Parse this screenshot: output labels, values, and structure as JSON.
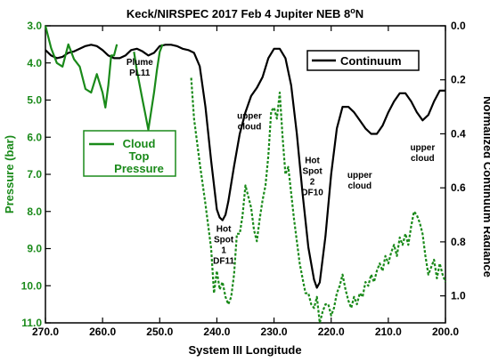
{
  "chart_data": {
    "type": "line",
    "title": "Keck/NIRSPEC 2017 Feb 4 Jupiter NEB 8",
    "title_superscript": "o",
    "title_suffix": "N",
    "xlabel": "System III Longitude",
    "ylabel_left": "Pressure (bar)",
    "ylabel_right": "Normalized Continuum Radiance",
    "xlim": [
      270,
      200
    ],
    "ylim_left": [
      3.0,
      11.0
    ],
    "ylim_right": [
      0.0,
      1.1
    ],
    "x_ticks": [
      "270.0",
      "260.0",
      "250.0",
      "240.0",
      "230.0",
      "220.0",
      "210.0",
      "200.0"
    ],
    "y_left_ticks": [
      "3.0",
      "4.0",
      "5.0",
      "6.0",
      "7.0",
      "8.0",
      "9.0",
      "10.0",
      "11.0"
    ],
    "y_right_ticks": [
      "0.0",
      "0.2",
      "0.4",
      "0.6",
      "0.8",
      "1.0"
    ],
    "colors": {
      "continuum": "#000000",
      "cloud": "#1a8a1a"
    },
    "legend_continuum": {
      "label": "Continuum",
      "placement": "top-right"
    },
    "legend_cloud": {
      "lines": [
        "Cloud",
        "Top",
        "Pressure"
      ],
      "placement": "left"
    },
    "series": [
      {
        "name": "Continuum",
        "axis": "right",
        "style": "solid",
        "points": [
          [
            270,
            0.09
          ],
          [
            269,
            0.11
          ],
          [
            268,
            0.12
          ],
          [
            267,
            0.115
          ],
          [
            266,
            0.1
          ],
          [
            265,
            0.095
          ],
          [
            264,
            0.085
          ],
          [
            263,
            0.075
          ],
          [
            262,
            0.07
          ],
          [
            261,
            0.075
          ],
          [
            260,
            0.09
          ],
          [
            259,
            0.11
          ],
          [
            258,
            0.12
          ],
          [
            257,
            0.12
          ],
          [
            256,
            0.11
          ],
          [
            255,
            0.09
          ],
          [
            254,
            0.085
          ],
          [
            253,
            0.095
          ],
          [
            252,
            0.11
          ],
          [
            251,
            0.1
          ],
          [
            250,
            0.075
          ],
          [
            249,
            0.07
          ],
          [
            248,
            0.07
          ],
          [
            247,
            0.075
          ],
          [
            246,
            0.085
          ],
          [
            245,
            0.09
          ],
          [
            244,
            0.1
          ],
          [
            243,
            0.15
          ],
          [
            242,
            0.3
          ],
          [
            241,
            0.5
          ],
          [
            240,
            0.68
          ],
          [
            239.5,
            0.71
          ],
          [
            239,
            0.72
          ],
          [
            238.5,
            0.7
          ],
          [
            238,
            0.65
          ],
          [
            237,
            0.52
          ],
          [
            236,
            0.4
          ],
          [
            235,
            0.32
          ],
          [
            234,
            0.26
          ],
          [
            233,
            0.23
          ],
          [
            232,
            0.19
          ],
          [
            231,
            0.12
          ],
          [
            230,
            0.085
          ],
          [
            229,
            0.085
          ],
          [
            228,
            0.12
          ],
          [
            227,
            0.22
          ],
          [
            226,
            0.4
          ],
          [
            225,
            0.62
          ],
          [
            224,
            0.82
          ],
          [
            223,
            0.94
          ],
          [
            222.5,
            0.97
          ],
          [
            222,
            0.95
          ],
          [
            221,
            0.78
          ],
          [
            220,
            0.55
          ],
          [
            219,
            0.38
          ],
          [
            218,
            0.3
          ],
          [
            217,
            0.3
          ],
          [
            216,
            0.32
          ],
          [
            215,
            0.35
          ],
          [
            214,
            0.38
          ],
          [
            213,
            0.4
          ],
          [
            212,
            0.4
          ],
          [
            211,
            0.37
          ],
          [
            210,
            0.32
          ],
          [
            209,
            0.28
          ],
          [
            208,
            0.25
          ],
          [
            207,
            0.25
          ],
          [
            206,
            0.28
          ],
          [
            205,
            0.32
          ],
          [
            204,
            0.35
          ],
          [
            203,
            0.33
          ],
          [
            202,
            0.28
          ],
          [
            201,
            0.24
          ],
          [
            200,
            0.24
          ]
        ]
      },
      {
        "name": "Cloud Top Pressure",
        "axis": "left",
        "style": "solid",
        "points": [
          [
            270,
            3.0
          ],
          [
            269,
            3.6
          ],
          [
            268,
            4.0
          ],
          [
            267,
            4.1
          ],
          [
            266,
            3.5
          ],
          [
            265,
            3.9
          ],
          [
            264,
            4.1
          ],
          [
            263,
            4.7
          ],
          [
            262,
            4.8
          ],
          [
            261,
            4.3
          ],
          [
            260,
            4.8
          ],
          [
            259.5,
            5.2
          ],
          [
            259,
            4.6
          ],
          [
            258.5,
            3.8
          ],
          [
            258,
            3.8
          ],
          [
            257.5,
            3.5
          ]
        ]
      },
      {
        "name": "Cloud Top Pressure (PL11)",
        "axis": "left",
        "style": "solid",
        "points": [
          [
            254.5,
            3.7
          ],
          [
            254,
            4.2
          ],
          [
            253,
            5.0
          ],
          [
            252.5,
            5.4
          ],
          [
            252,
            5.8
          ],
          [
            251.5,
            5.3
          ],
          [
            251,
            4.8
          ],
          [
            250.5,
            4.2
          ],
          [
            250,
            3.7
          ],
          [
            249.5,
            3.5
          ]
        ]
      },
      {
        "name": "Cloud Top Pressure (dashed)",
        "axis": "left",
        "style": "dashed",
        "points": [
          [
            244.5,
            4.4
          ],
          [
            244,
            5.5
          ],
          [
            243,
            6.7
          ],
          [
            242,
            7.8
          ],
          [
            241,
            9.0
          ],
          [
            240.5,
            10.2
          ],
          [
            240,
            9.6
          ],
          [
            239.5,
            10.1
          ],
          [
            239,
            9.9
          ],
          [
            238.5,
            10.3
          ],
          [
            238,
            10.5
          ],
          [
            237.5,
            10.3
          ],
          [
            237,
            9.7
          ],
          [
            236.5,
            8.6
          ],
          [
            236,
            8.6
          ],
          [
            235.5,
            8.1
          ],
          [
            235,
            7.3
          ],
          [
            234.5,
            7.6
          ],
          [
            234,
            7.9
          ],
          [
            233.5,
            8.5
          ],
          [
            233,
            8.8
          ],
          [
            232.5,
            8.2
          ],
          [
            232,
            7.7
          ],
          [
            231.5,
            7.3
          ],
          [
            231,
            6.5
          ],
          [
            230.5,
            5.3
          ],
          [
            230,
            5.2
          ],
          [
            229.5,
            5.5
          ],
          [
            229,
            4.8
          ],
          [
            228.5,
            6.0
          ],
          [
            228,
            7.0
          ],
          [
            227.5,
            6.8
          ],
          [
            227,
            7.5
          ],
          [
            226.5,
            8.2
          ],
          [
            226,
            8.8
          ],
          [
            225.5,
            9.4
          ],
          [
            225,
            9.8
          ],
          [
            224.5,
            10.2
          ],
          [
            224,
            10.2
          ],
          [
            223.5,
            10.5
          ],
          [
            223,
            10.6
          ],
          [
            222.5,
            10.3
          ],
          [
            222,
            11.0
          ],
          [
            221.5,
            10.7
          ],
          [
            221,
            10.5
          ],
          [
            220.5,
            10.5
          ],
          [
            220,
            10.8
          ],
          [
            219.5,
            10.6
          ],
          [
            219,
            10.2
          ],
          [
            218.5,
            10.0
          ],
          [
            218,
            9.7
          ],
          [
            217.5,
            10.1
          ],
          [
            217,
            10.4
          ],
          [
            216.5,
            10.6
          ],
          [
            216,
            10.3
          ],
          [
            215.5,
            10.5
          ],
          [
            215,
            10.2
          ],
          [
            214.5,
            10.3
          ],
          [
            214,
            9.9
          ],
          [
            213.5,
            10.0
          ],
          [
            213,
            9.7
          ],
          [
            212.5,
            9.9
          ],
          [
            212,
            9.6
          ],
          [
            211.5,
            9.4
          ],
          [
            211,
            9.6
          ],
          [
            210.5,
            9.2
          ],
          [
            210,
            9.4
          ],
          [
            209.5,
            9.1
          ],
          [
            209,
            8.9
          ],
          [
            208.5,
            9.2
          ],
          [
            208,
            8.7
          ],
          [
            207.5,
            8.9
          ],
          [
            207,
            8.6
          ],
          [
            206.5,
            8.9
          ],
          [
            206,
            8.4
          ],
          [
            205.5,
            8.0
          ],
          [
            205,
            8.1
          ],
          [
            204.5,
            8.3
          ],
          [
            204,
            8.6
          ],
          [
            203.5,
            9.2
          ],
          [
            203,
            9.7
          ],
          [
            202.5,
            9.5
          ],
          [
            202,
            9.3
          ],
          [
            201.5,
            9.8
          ],
          [
            201,
            9.4
          ],
          [
            200.5,
            9.7
          ],
          [
            200,
            9.9
          ]
        ]
      }
    ],
    "annotations": [
      {
        "lines": [
          "Plume",
          "PL11"
        ],
        "x": 253.5,
        "y_left": 4.05
      },
      {
        "lines": [
          "upper",
          "cloud"
        ],
        "x": 234.3,
        "y_left": 5.5
      },
      {
        "lines": [
          "Hot",
          "Spot",
          "1",
          "DF11"
        ],
        "x": 238.8,
        "y_left": 8.55
      },
      {
        "lines": [
          "Hot",
          "Spot",
          "2",
          "DF10"
        ],
        "x": 223.3,
        "y_left": 6.7
      },
      {
        "lines": [
          "upper",
          "cloud"
        ],
        "x": 215.0,
        "y_left": 7.1
      },
      {
        "lines": [
          "upper",
          "cloud"
        ],
        "x": 204.0,
        "y_left": 6.35
      }
    ]
  }
}
